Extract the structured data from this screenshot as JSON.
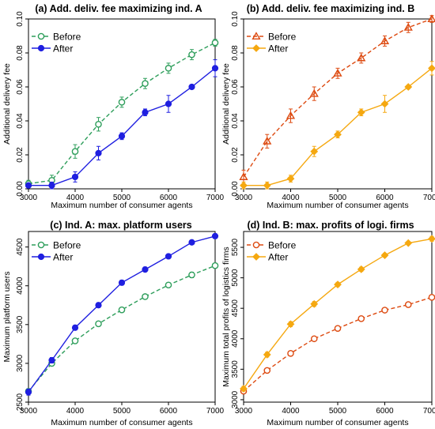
{
  "chart_data": [
    {
      "type": "line",
      "title": "(a) Add. deliv. fee maximizing ind. A",
      "xlabel": "Maximum number of consumer agents",
      "ylabel": "Additional delivery fee",
      "x": [
        3000,
        3500,
        4000,
        4500,
        5000,
        5500,
        6000,
        6500,
        7000
      ],
      "xticks": [
        "3000",
        "4000",
        "5000",
        "6000",
        "7000"
      ],
      "yticks": [
        "0.00",
        "0.02",
        "0.04",
        "0.06",
        "0.08",
        "0.10"
      ],
      "xlim": [
        3000,
        7000
      ],
      "ylim": [
        0.0,
        0.1
      ],
      "legend_position": "top-left",
      "series": [
        {
          "name": "Before",
          "color": "#2e9e5b",
          "marker": "open-circle",
          "dash": true,
          "values": [
            0.003,
            0.005,
            0.022,
            0.038,
            0.051,
            0.062,
            0.071,
            0.079,
            0.086
          ],
          "errors": [
            0.002,
            0.003,
            0.004,
            0.004,
            0.003,
            0.003,
            0.003,
            0.003,
            0.002
          ]
        },
        {
          "name": "After",
          "color": "#1f1fe0",
          "marker": "filled-circle",
          "dash": false,
          "values": [
            0.002,
            0.002,
            0.007,
            0.021,
            0.031,
            0.045,
            0.05,
            0.06,
            0.071
          ],
          "errors": [
            0.001,
            0.002,
            0.003,
            0.004,
            0.002,
            0.002,
            0.005,
            0.001,
            0.005
          ]
        }
      ]
    },
    {
      "type": "line",
      "title": "(b) Add. deliv. fee maximizing ind. B",
      "xlabel": "Maximum number of consumer agents",
      "ylabel": "Additional delivery fee",
      "x": [
        3000,
        3500,
        4000,
        4500,
        5000,
        5500,
        6000,
        6500,
        7000
      ],
      "xticks": [
        "3000",
        "4000",
        "5000",
        "6000",
        "7000"
      ],
      "yticks": [
        "0.00",
        "0.02",
        "0.04",
        "0.06",
        "0.08",
        "0.10"
      ],
      "xlim": [
        3000,
        7000
      ],
      "ylim": [
        0.0,
        0.1
      ],
      "legend_position": "top-left",
      "series": [
        {
          "name": "Before",
          "color": "#dd4a10",
          "marker": "open-triangle",
          "dash": true,
          "values": [
            0.007,
            0.028,
            0.043,
            0.056,
            0.068,
            0.077,
            0.087,
            0.095,
            0.1
          ],
          "errors": [
            0.004,
            0.004,
            0.004,
            0.004,
            0.003,
            0.003,
            0.003,
            0.003,
            0.002
          ]
        },
        {
          "name": "After",
          "color": "#f5a810",
          "marker": "filled-diamond",
          "dash": false,
          "values": [
            0.002,
            0.002,
            0.006,
            0.022,
            0.032,
            0.045,
            0.05,
            0.06,
            0.071
          ],
          "errors": [
            0.002,
            0.002,
            0.002,
            0.003,
            0.002,
            0.002,
            0.005,
            0.001,
            0.004
          ]
        }
      ]
    },
    {
      "type": "line",
      "title": "(c) Ind. A: max. platform users",
      "xlabel": "Maximum number of consumer agents",
      "ylabel": "Maximum platform users",
      "x": [
        3000,
        3500,
        4000,
        4500,
        5000,
        5500,
        6000,
        6500,
        7000
      ],
      "xticks": [
        "3000",
        "4000",
        "5000",
        "6000",
        "7000"
      ],
      "yticks": [
        "2500",
        "3000",
        "3500",
        "4000",
        "4500"
      ],
      "xlim": [
        3000,
        7000
      ],
      "ylim": [
        2500,
        4700
      ],
      "legend_position": "top-left",
      "series": [
        {
          "name": "Before",
          "color": "#2e9e5b",
          "marker": "open-circle",
          "dash": true,
          "values": [
            2640,
            3000,
            3290,
            3510,
            3690,
            3860,
            4010,
            4140,
            4260
          ],
          "errors": [
            30,
            30,
            25,
            30,
            30,
            30,
            30,
            35,
            30
          ]
        },
        {
          "name": "After",
          "color": "#1f1fe0",
          "marker": "filled-circle",
          "dash": false,
          "values": [
            2630,
            3040,
            3460,
            3750,
            4040,
            4210,
            4380,
            4560,
            4640
          ],
          "errors": [
            40,
            35,
            30,
            30,
            30,
            30,
            25,
            20,
            30
          ]
        }
      ]
    },
    {
      "type": "line",
      "title": "(d) Ind. B: max. profits of logi. firms",
      "xlabel": "Maximum number of consumer agents",
      "ylabel": "Maximum total profits of logistics firms",
      "x": [
        3000,
        3500,
        4000,
        4500,
        5000,
        5500,
        6000,
        6500,
        7000
      ],
      "xticks": [
        "3000",
        "4000",
        "5000",
        "6000",
        "7000"
      ],
      "yticks": [
        "3000",
        "3500",
        "4000",
        "4500",
        "5000",
        "5500"
      ],
      "xlim": [
        3000,
        7000
      ],
      "ylim": [
        2960,
        5760
      ],
      "legend_position": "top-left",
      "series": [
        {
          "name": "Before",
          "color": "#dd4a10",
          "marker": "open-circle",
          "dash": true,
          "values": [
            3140,
            3480,
            3760,
            4000,
            4170,
            4330,
            4470,
            4560,
            4680
          ],
          "errors": [
            30,
            30,
            30,
            30,
            35,
            30,
            30,
            30,
            35
          ]
        },
        {
          "name": "After",
          "color": "#f5a810",
          "marker": "filled-diamond",
          "dash": false,
          "values": [
            3180,
            3740,
            4240,
            4570,
            4890,
            5140,
            5370,
            5570,
            5640
          ],
          "errors": [
            40,
            40,
            40,
            40,
            35,
            35,
            30,
            25,
            40
          ]
        }
      ]
    }
  ]
}
